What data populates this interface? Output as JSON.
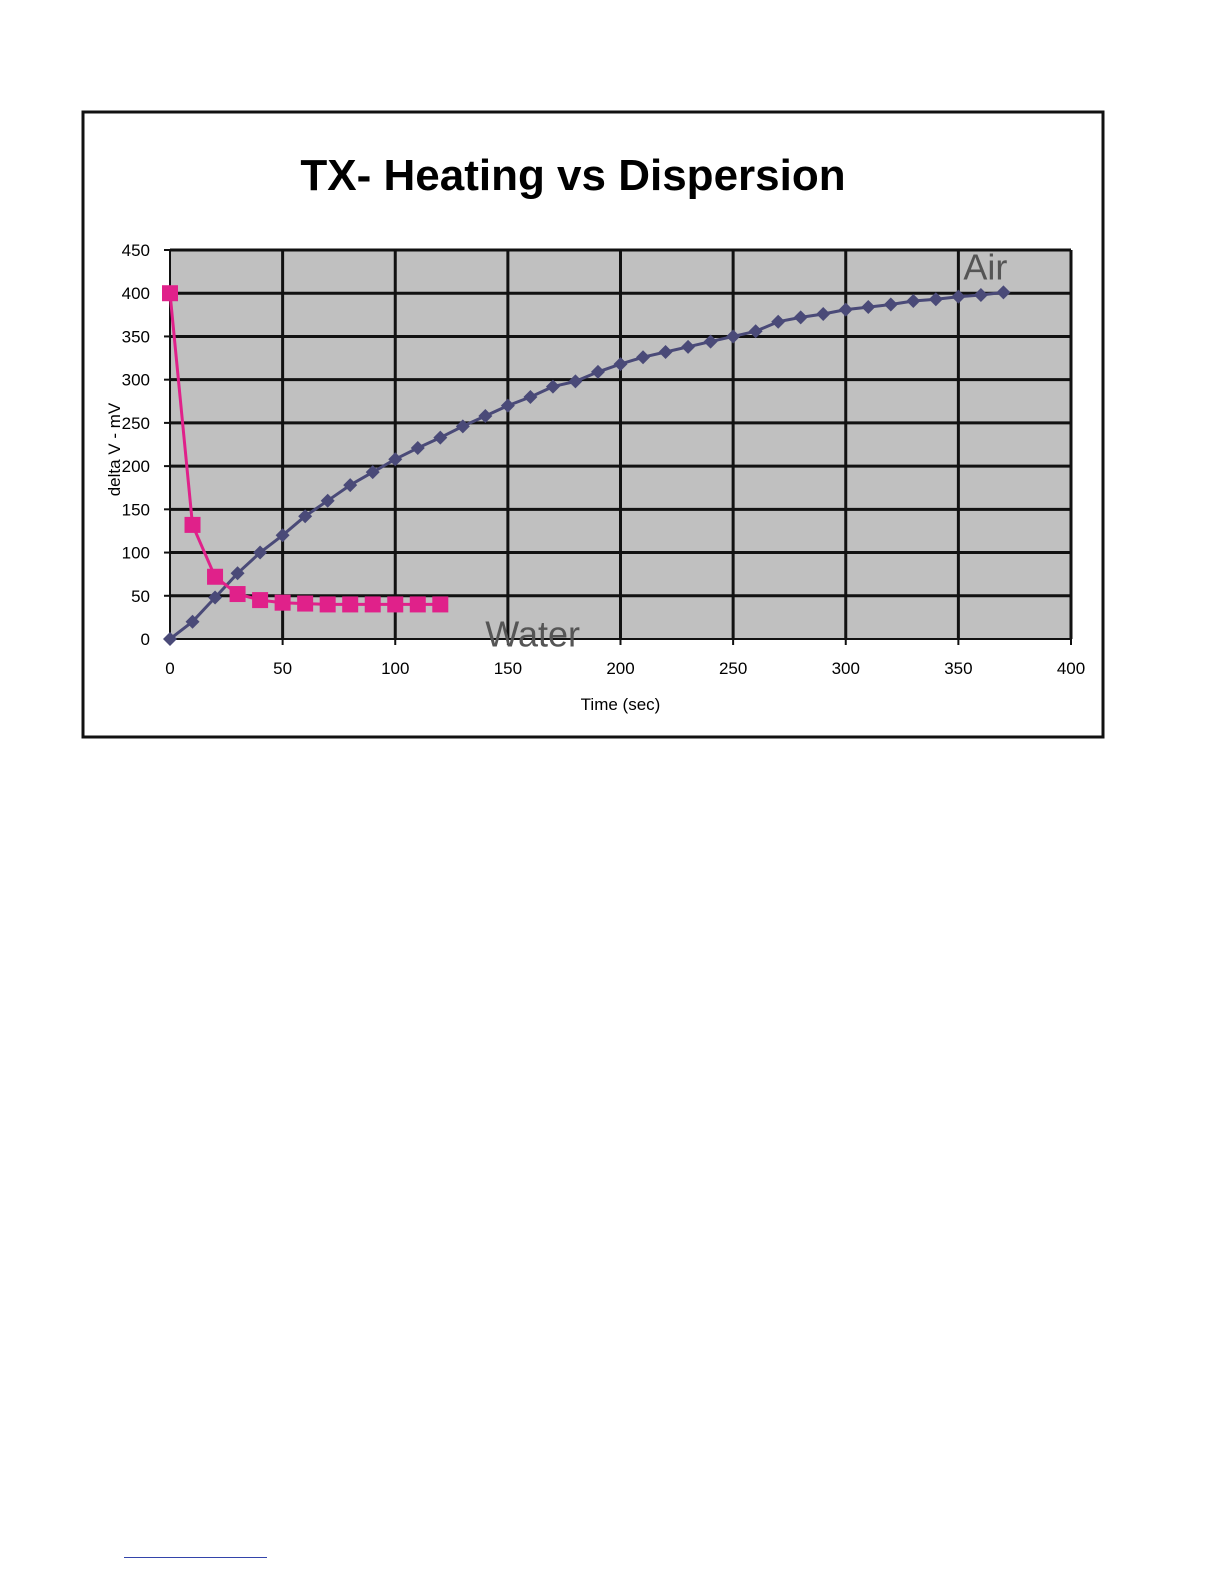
{
  "chart_data": {
    "type": "line",
    "title": "TX- Heating vs Dispersion",
    "xlabel": "Time (sec)",
    "ylabel": "delta V - mV",
    "xlim": [
      0,
      400
    ],
    "ylim": [
      0,
      450
    ],
    "x_ticks": [
      0,
      50,
      100,
      150,
      200,
      250,
      300,
      350,
      400
    ],
    "y_ticks": [
      0,
      50,
      100,
      150,
      200,
      250,
      300,
      350,
      400,
      450
    ],
    "x_tick_labels": [
      "0",
      "50",
      "100",
      "150",
      "200",
      "250",
      "300",
      "350",
      "400"
    ],
    "y_tick_labels": [
      "0",
      "50",
      "100",
      "150",
      "200",
      "250",
      "300",
      "350",
      "400",
      "450"
    ],
    "grid": true,
    "legend": "none",
    "plot_background": "#c0c0c0",
    "annotations": [
      {
        "text": "Air",
        "x": 362,
        "y": 430
      },
      {
        "text": "Water",
        "x": 161,
        "y": 5
      }
    ],
    "series": [
      {
        "label": "Air",
        "color": "#4a4a78",
        "marker": "diamond",
        "x": [
          0,
          10,
          20,
          30,
          40,
          50,
          60,
          70,
          80,
          90,
          100,
          110,
          120,
          130,
          140,
          150,
          160,
          170,
          180,
          190,
          200,
          210,
          220,
          230,
          240,
          250,
          260,
          270,
          280,
          290,
          300,
          310,
          320,
          330,
          340,
          350,
          360,
          370
        ],
        "y": [
          0,
          20,
          48,
          76,
          100,
          120,
          142,
          160,
          178,
          193,
          208,
          221,
          233,
          246,
          258,
          270,
          280,
          292,
          298,
          309,
          318,
          326,
          332,
          338,
          344,
          350,
          356,
          367,
          372,
          376,
          381,
          384,
          387,
          391,
          393,
          396,
          398,
          401
        ]
      },
      {
        "label": "Water",
        "color": "#e0218a",
        "marker": "square",
        "x": [
          0,
          10,
          20,
          30,
          40,
          50,
          60,
          70,
          80,
          90,
          100,
          110,
          120
        ],
        "y": [
          400,
          132,
          72,
          52,
          45,
          42,
          41,
          40,
          40,
          40,
          40,
          40,
          40
        ]
      }
    ]
  }
}
